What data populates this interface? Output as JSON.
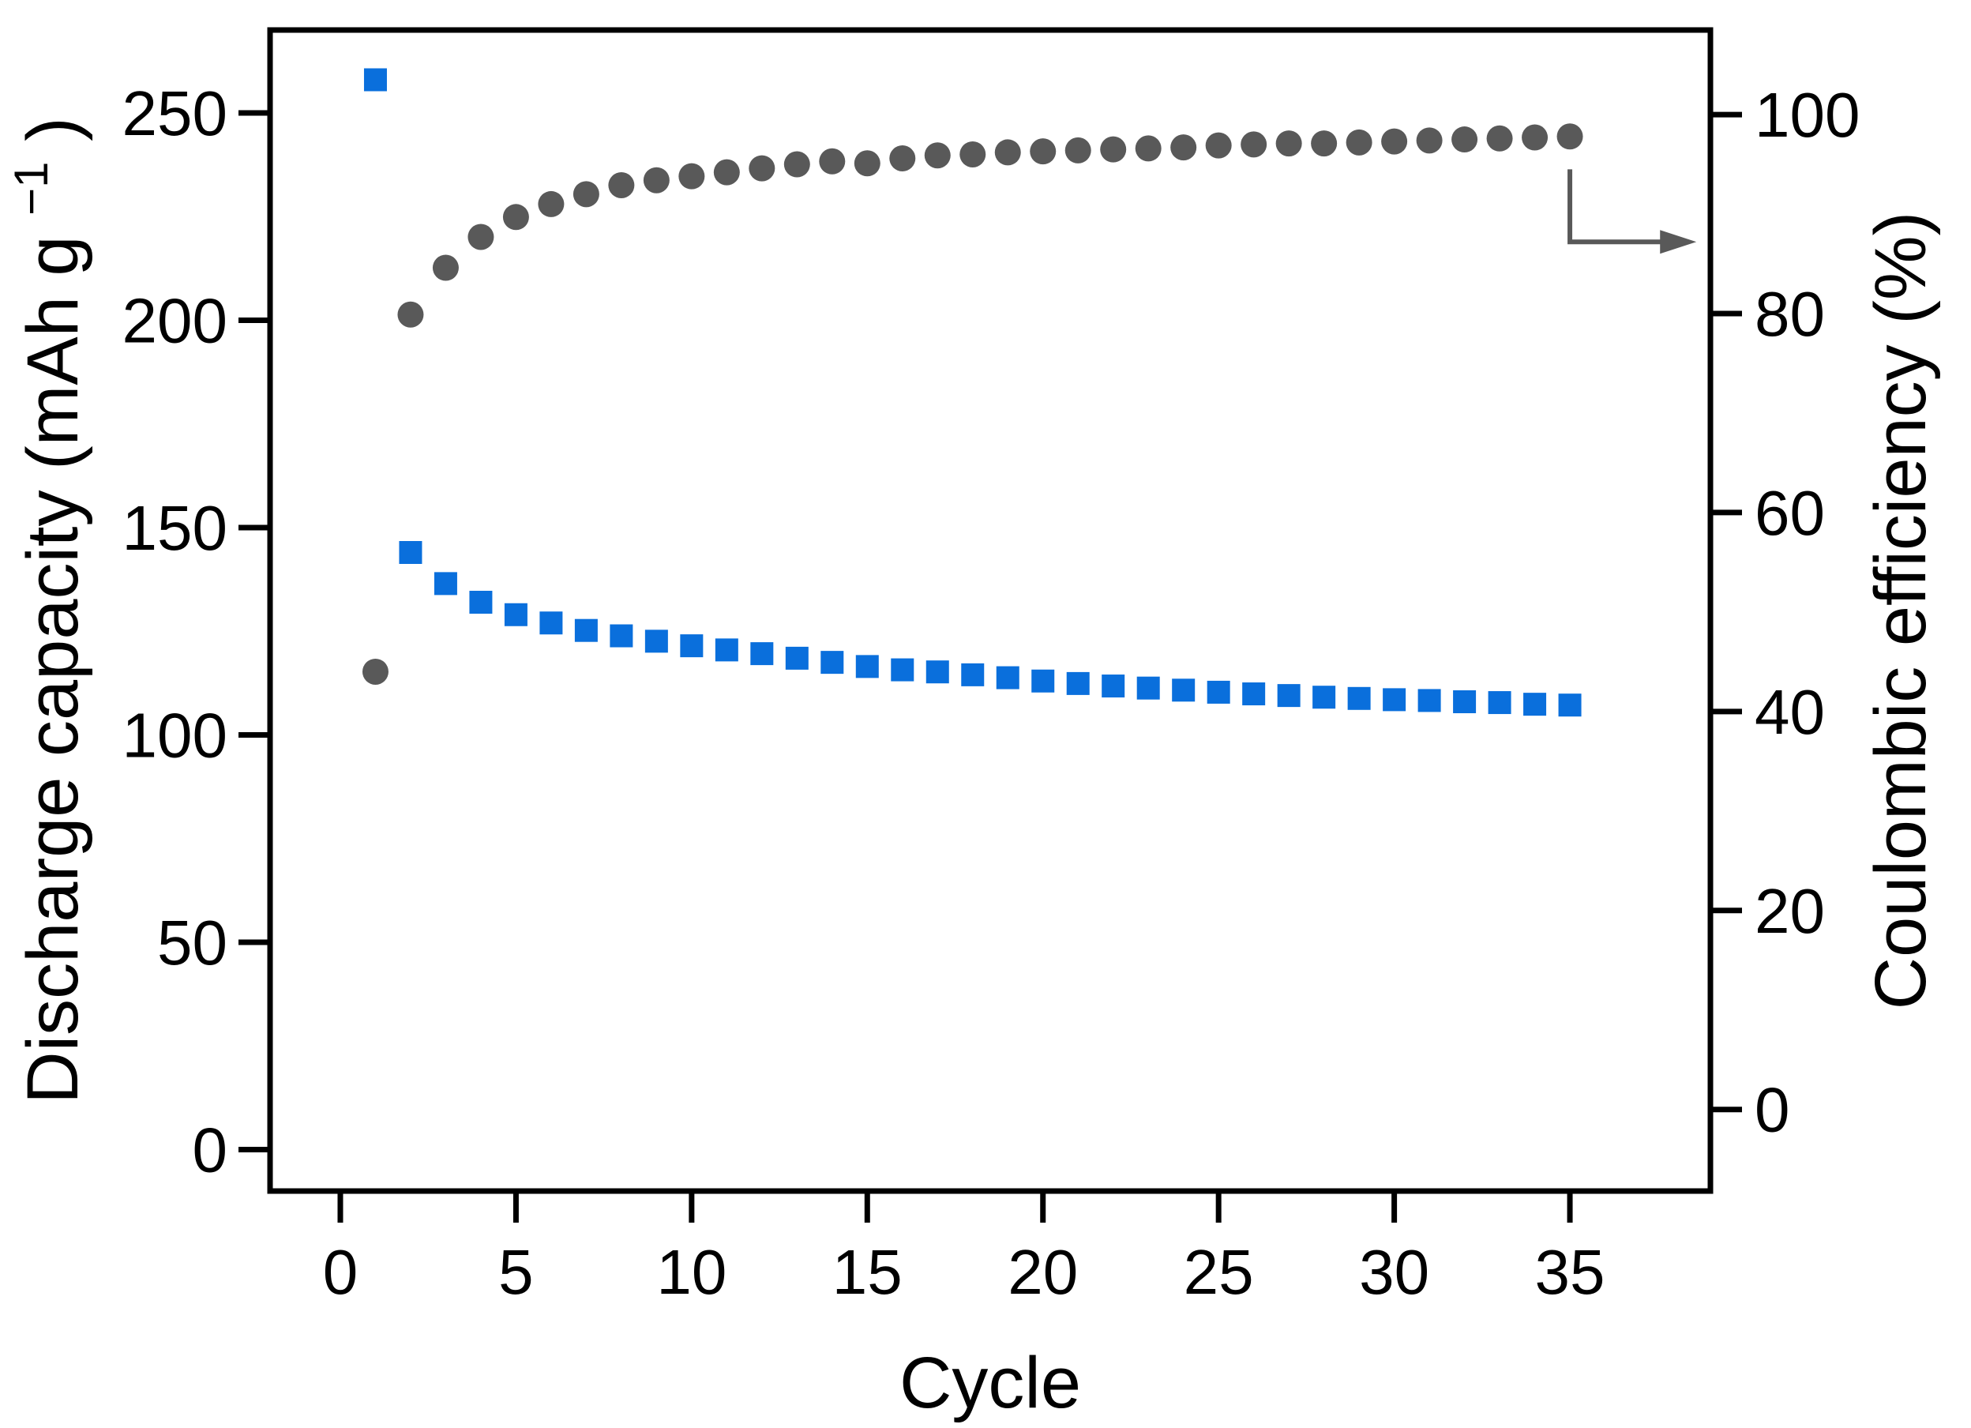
{
  "figure": {
    "background": "#ffffff",
    "axis_color": "#000000",
    "left_axis_title": {
      "pre": "Discharge capacity (mAh g",
      "sup": "−1",
      "post": ")"
    },
    "right_axis_title": "Coulombic efficiency (%)",
    "x_axis_title": "Cycle"
  },
  "chart_data": {
    "type": "scatter",
    "title": "",
    "xlabel": "Cycle",
    "ylabel_left": "Discharge capacity (mAh g⁻¹)",
    "ylabel_right": "Coulombic efficiency (%)",
    "grid": false,
    "legend": "none",
    "x": [
      1,
      2,
      3,
      4,
      5,
      6,
      7,
      8,
      9,
      10,
      11,
      12,
      13,
      14,
      15,
      16,
      17,
      18,
      19,
      20,
      21,
      22,
      23,
      24,
      25,
      26,
      27,
      28,
      29,
      30,
      31,
      32,
      33,
      34,
      35
    ],
    "series": [
      {
        "name": "Discharge capacity",
        "axis": "left",
        "marker": "square",
        "color": "#0a6fdc",
        "values": [
          258,
          144,
          136.5,
          132,
          129,
          127,
          125.2,
          123.9,
          122.6,
          121.5,
          120.5,
          119.6,
          118.5,
          117.5,
          116.5,
          115.7,
          115.2,
          114.5,
          113.8,
          113.0,
          112.4,
          111.8,
          111.3,
          110.8,
          110.3,
          109.9,
          109.5,
          109.1,
          108.8,
          108.5,
          108.3,
          108.0,
          107.8,
          107.4,
          107.2
        ]
      },
      {
        "name": "Coulombic efficiency",
        "axis": "right",
        "marker": "circle",
        "color": "#595959",
        "values": [
          44,
          79.9,
          84.6,
          87.7,
          89.7,
          91.0,
          92.0,
          92.9,
          93.4,
          93.8,
          94.2,
          94.6,
          95.0,
          95.3,
          95.1,
          95.6,
          95.9,
          96.0,
          96.2,
          96.3,
          96.4,
          96.5,
          96.6,
          96.7,
          96.9,
          97.0,
          97.1,
          97.1,
          97.2,
          97.3,
          97.4,
          97.5,
          97.6,
          97.7,
          97.8
        ]
      }
    ],
    "axes": {
      "x": {
        "label": "Cycle",
        "range": [
          -2,
          39
        ],
        "ticks": [
          0,
          5,
          10,
          15,
          20,
          25,
          30,
          35
        ]
      },
      "left": {
        "label": "Discharge capacity (mAh g⁻¹)",
        "range": [
          -10,
          270
        ],
        "ticks": [
          0,
          50,
          100,
          150,
          200,
          250
        ]
      },
      "right": {
        "label": "Coulombic efficiency (%)",
        "range": [
          -8.2,
          108.5
        ],
        "ticks": [
          0,
          20,
          40,
          60,
          80,
          100
        ]
      }
    },
    "annotation_arrow": {
      "meaning": "efficiency series refers to right axis",
      "color": "#595959",
      "cycle": 35,
      "from_pct": 94.5,
      "elbow_pct": 87.2,
      "to_cycle": 38.6
    }
  }
}
